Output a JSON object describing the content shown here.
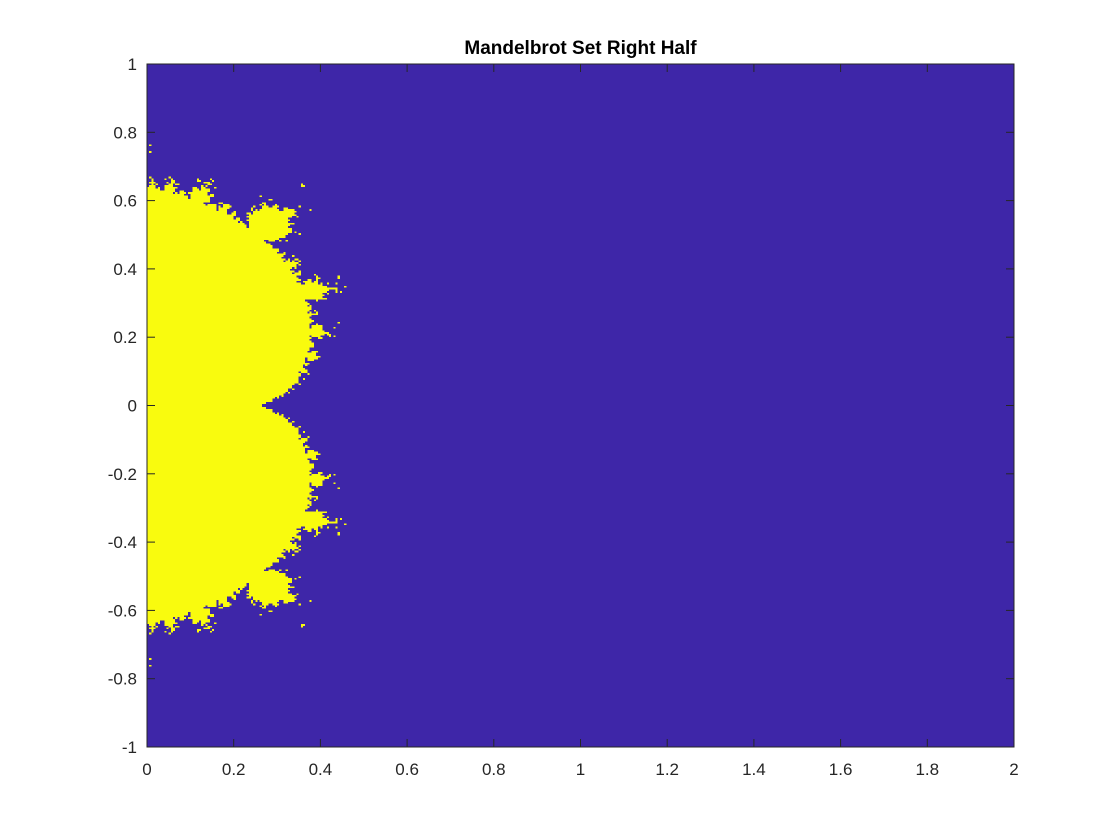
{
  "chart_data": {
    "type": "heatmap",
    "title": "Mandelbrot Set Right Half",
    "xlabel": "",
    "ylabel": "",
    "xlim": [
      0,
      2
    ],
    "ylim": [
      -1,
      1
    ],
    "x_ticks": [
      0,
      0.2,
      0.4,
      0.6,
      0.8,
      1,
      1.2,
      1.4,
      1.6,
      1.8,
      2
    ],
    "x_tick_labels": [
      "0",
      "0.2",
      "0.4",
      "0.6",
      "0.8",
      "1",
      "1.2",
      "1.4",
      "1.6",
      "1.8",
      "2"
    ],
    "y_ticks": [
      1,
      0.8,
      0.6,
      0.4,
      0.2,
      0,
      -0.2,
      -0.4,
      -0.6,
      -0.8,
      -1
    ],
    "y_tick_labels": [
      "1",
      "0.8",
      "0.6",
      "0.4",
      "0.2",
      "0",
      "-0.2",
      "-0.4",
      "-0.6",
      "-0.8",
      "-1"
    ],
    "grid": false,
    "legend": "none",
    "colormap": "parula",
    "colors": {
      "inside_set": "#f9fb0e",
      "outside_set": "#3e26a8",
      "axes": "#262626"
    },
    "max_iterations": 50,
    "grid_resolution": [
      400,
      400
    ]
  }
}
